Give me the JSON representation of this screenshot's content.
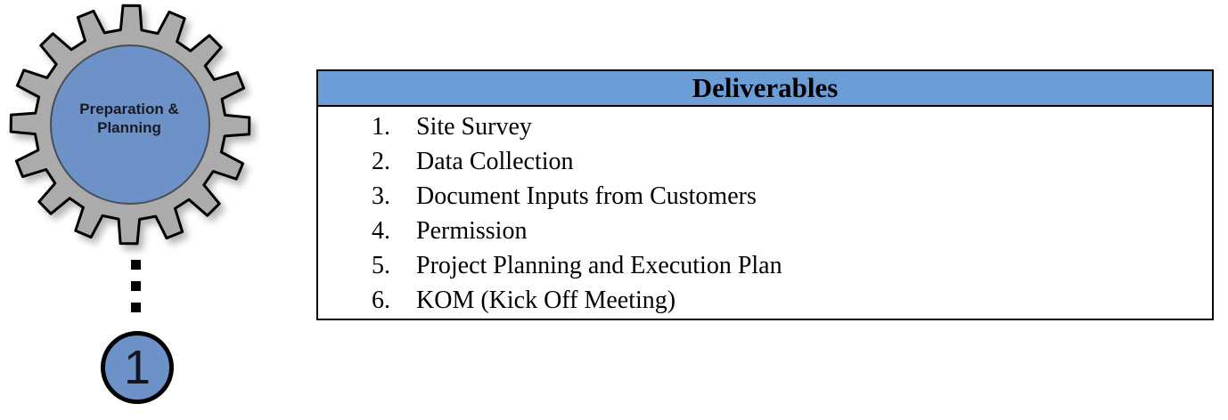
{
  "gear": {
    "label": "Preparation & Planning",
    "icon": "gear-icon"
  },
  "step": {
    "number": "1"
  },
  "table": {
    "header": "Deliverables",
    "items": [
      "Site Survey",
      "Data Collection",
      "Document Inputs from Customers",
      "Permission",
      "Project Planning and Execution Plan",
      "KOM (Kick Off Meeting)"
    ]
  },
  "colors": {
    "header_bg": "#6B9DD6",
    "gear_fill": "#ABABAB",
    "gear_outline": "#000000",
    "node_fill": "#6D92C8",
    "node_inner_stroke": "#4d4d55",
    "dot_color": "#000000"
  }
}
